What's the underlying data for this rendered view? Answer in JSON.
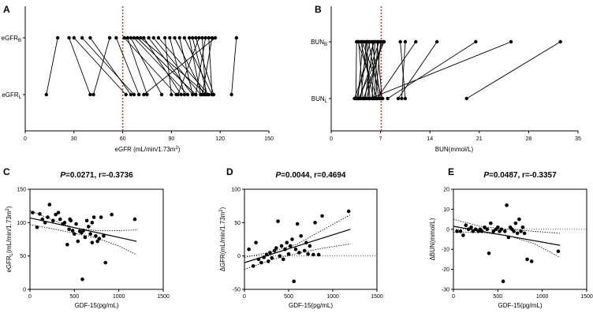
{
  "chart_data": [
    {
      "panel": "A",
      "type": "scatter",
      "xlabel": "eGFR (mL/min/1.73m²)",
      "xlim": [
        0,
        150
      ],
      "xticks": [
        "0",
        "30",
        "60",
        "90",
        "120",
        "150"
      ],
      "categories": [
        "eGFRB",
        "eGFRL"
      ],
      "reference_line": 60,
      "pairs": [
        [
          20,
          13
        ],
        [
          27,
          40
        ],
        [
          30,
          62
        ],
        [
          35,
          67
        ],
        [
          40,
          65
        ],
        [
          52,
          42
        ],
        [
          56,
          70
        ],
        [
          61,
          93
        ],
        [
          63,
          75
        ],
        [
          65,
          84
        ],
        [
          67,
          100
        ],
        [
          69,
          105
        ],
        [
          71,
          112
        ],
        [
          73,
          96
        ],
        [
          76,
          103
        ],
        [
          79,
          108
        ],
        [
          82,
          113
        ],
        [
          86,
          90
        ],
        [
          89,
          98
        ],
        [
          92,
          110
        ],
        [
          95,
          103
        ],
        [
          98,
          115
        ],
        [
          101,
          108
        ],
        [
          103,
          112
        ],
        [
          105,
          116
        ],
        [
          107,
          94
        ],
        [
          109,
          111
        ],
        [
          111,
          105
        ],
        [
          113,
          115
        ],
        [
          115,
          109
        ],
        [
          117,
          73
        ],
        [
          130,
          127
        ]
      ]
    },
    {
      "panel": "B",
      "type": "scatter",
      "xlabel": "BUN(mmol/L)",
      "xlim": [
        0,
        35
      ],
      "xticks": [
        "0",
        "7",
        "14",
        "21",
        "28",
        "35"
      ],
      "categories": [
        "BUNB",
        "BUNL"
      ],
      "reference_line": 7.1,
      "pairs": [
        [
          3.6,
          3.5
        ],
        [
          3.9,
          4.5
        ],
        [
          4.2,
          6.0
        ],
        [
          4.5,
          3.8
        ],
        [
          4.8,
          5.5
        ],
        [
          5.0,
          4.2
        ],
        [
          5.3,
          6.8
        ],
        [
          5.5,
          3.6
        ],
        [
          5.8,
          7.0
        ],
        [
          6.0,
          4.8
        ],
        [
          6.2,
          5.8
        ],
        [
          6.5,
          7.2
        ],
        [
          6.8,
          4.0
        ],
        [
          7.0,
          6.3
        ],
        [
          7.2,
          5.0
        ],
        [
          7.5,
          3.9
        ],
        [
          3.8,
          6.5
        ],
        [
          4.4,
          7.3
        ],
        [
          5.1,
          5.3
        ],
        [
          6.1,
          3.3
        ],
        [
          6.6,
          6.1
        ],
        [
          7.4,
          4.6
        ],
        [
          9.8,
          10.5
        ],
        [
          10.5,
          10.0
        ],
        [
          12.0,
          6.5
        ],
        [
          15.0,
          9.5
        ],
        [
          20.5,
          8.0
        ],
        [
          25.5,
          5.5
        ],
        [
          32.5,
          19.2
        ]
      ]
    },
    {
      "panel": "C",
      "type": "scatter",
      "title": "P=0.0271, r=-0.3736",
      "ylabel": "eGFRL(mL/min/1.73m²)",
      "xlabel": "GDF-15(pg/mL)",
      "xlim": [
        0,
        1500
      ],
      "ylim": [
        0,
        150
      ],
      "xticks": [
        "0",
        "500",
        "1000",
        "1500"
      ],
      "yticks": [
        "0",
        "50",
        "100",
        "150"
      ],
      "points": [
        [
          30,
          115
        ],
        [
          80,
          93
        ],
        [
          110,
          113
        ],
        [
          140,
          105
        ],
        [
          170,
          100
        ],
        [
          200,
          108
        ],
        [
          220,
          127
        ],
        [
          260,
          103
        ],
        [
          290,
          112
        ],
        [
          320,
          115
        ],
        [
          340,
          105
        ],
        [
          370,
          98
        ],
        [
          390,
          100
        ],
        [
          420,
          67
        ],
        [
          440,
          90
        ],
        [
          460,
          103
        ],
        [
          480,
          88
        ],
        [
          500,
          83
        ],
        [
          520,
          98
        ],
        [
          540,
          72
        ],
        [
          560,
          87
        ],
        [
          580,
          85
        ],
        [
          600,
          88
        ],
        [
          620,
          78
        ],
        [
          640,
          103
        ],
        [
          660,
          94
        ],
        [
          680,
          83
        ],
        [
          700,
          100
        ],
        [
          720,
          108
        ],
        [
          740,
          80
        ],
        [
          760,
          72
        ],
        [
          780,
          76
        ],
        [
          800,
          108
        ],
        [
          830,
          80
        ],
        [
          850,
          40
        ],
        [
          920,
          112
        ],
        [
          1180,
          105
        ],
        [
          590,
          15
        ],
        [
          450,
          105
        ],
        [
          700,
          70
        ]
      ],
      "regression": [
        [
          0,
          107
        ],
        [
          1200,
          72
        ]
      ],
      "ci_upper": [
        [
          0,
          118
        ],
        [
          250,
          104
        ],
        [
          500,
          92
        ],
        [
          750,
          88
        ],
        [
          1000,
          88
        ],
        [
          1200,
          89
        ]
      ],
      "ci_lower": [
        [
          0,
          97
        ],
        [
          250,
          91
        ],
        [
          500,
          84
        ],
        [
          750,
          77
        ],
        [
          1000,
          65
        ],
        [
          1200,
          52
        ]
      ]
    },
    {
      "panel": "D",
      "type": "scatter",
      "title": "P=0.0044, r=0.4694",
      "ylabel": "ΔGFR(mL/min/1.73m²)",
      "xlabel": "GDF-15(pg/mL)",
      "xlim": [
        0,
        1500
      ],
      "ylim": [
        -50,
        100
      ],
      "xticks": [
        "0",
        "500",
        "1000",
        "1500"
      ],
      "yticks": [
        "-50",
        "0",
        "50",
        "100"
      ],
      "points": [
        [
          50,
          10
        ],
        [
          100,
          -15
        ],
        [
          130,
          20
        ],
        [
          160,
          -5
        ],
        [
          190,
          -10
        ],
        [
          220,
          -2
        ],
        [
          250,
          2
        ],
        [
          270,
          -8
        ],
        [
          290,
          5
        ],
        [
          310,
          -3
        ],
        [
          340,
          8
        ],
        [
          360,
          12
        ],
        [
          380,
          52
        ],
        [
          400,
          0
        ],
        [
          420,
          15
        ],
        [
          440,
          -5
        ],
        [
          460,
          10
        ],
        [
          480,
          20
        ],
        [
          500,
          3
        ],
        [
          520,
          15
        ],
        [
          540,
          25
        ],
        [
          560,
          -38
        ],
        [
          580,
          10
        ],
        [
          600,
          48
        ],
        [
          620,
          5
        ],
        [
          640,
          30
        ],
        [
          680,
          8
        ],
        [
          700,
          20
        ],
        [
          720,
          3
        ],
        [
          740,
          15
        ],
        [
          780,
          2
        ],
        [
          800,
          50
        ],
        [
          840,
          2
        ],
        [
          880,
          60
        ],
        [
          1180,
          67
        ]
      ],
      "regression": [
        [
          0,
          -10
        ],
        [
          1200,
          40
        ]
      ],
      "ci_upper": [
        [
          0,
          -2
        ],
        [
          300,
          6
        ],
        [
          600,
          18
        ],
        [
          900,
          40
        ],
        [
          1200,
          62
        ]
      ],
      "ci_lower": [
        [
          0,
          -20
        ],
        [
          300,
          -6
        ],
        [
          600,
          4
        ],
        [
          900,
          12
        ],
        [
          1200,
          18
        ]
      ]
    },
    {
      "panel": "E",
      "type": "scatter",
      "title": "P=0.0487, r=-0.3357",
      "ylabel": "ΔBUN(mmol/L)",
      "xlabel": "GDF-15(pg/mL)",
      "xlim": [
        0,
        1500
      ],
      "ylim": [
        -30,
        20
      ],
      "xticks": [
        "0",
        "500",
        "1000",
        "1500"
      ],
      "yticks": [
        "-30",
        "-20",
        "-10",
        "0",
        "10",
        "20"
      ],
      "points": [
        [
          40,
          -1
        ],
        [
          80,
          -1
        ],
        [
          110,
          -3
        ],
        [
          140,
          2
        ],
        [
          170,
          0
        ],
        [
          200,
          1
        ],
        [
          220,
          -1
        ],
        [
          250,
          0
        ],
        [
          280,
          -1
        ],
        [
          300,
          0
        ],
        [
          320,
          -1
        ],
        [
          350,
          1
        ],
        [
          380,
          0
        ],
        [
          400,
          -12
        ],
        [
          420,
          3
        ],
        [
          450,
          -1
        ],
        [
          480,
          0
        ],
        [
          500,
          1
        ],
        [
          520,
          -1
        ],
        [
          540,
          0
        ],
        [
          560,
          -26
        ],
        [
          580,
          -1
        ],
        [
          600,
          12
        ],
        [
          620,
          -4
        ],
        [
          640,
          1
        ],
        [
          660,
          0
        ],
        [
          680,
          -1
        ],
        [
          700,
          3
        ],
        [
          720,
          -2
        ],
        [
          740,
          5
        ],
        [
          760,
          -1
        ],
        [
          780,
          1
        ],
        [
          800,
          -2
        ],
        [
          830,
          -15
        ],
        [
          880,
          -16
        ],
        [
          1180,
          -11
        ]
      ],
      "regression": [
        [
          0,
          1.5
        ],
        [
          1200,
          -8
        ]
      ],
      "ci_upper": [
        [
          0,
          5
        ],
        [
          300,
          1.5
        ],
        [
          600,
          0
        ],
        [
          900,
          -1
        ],
        [
          1200,
          -2
        ]
      ],
      "ci_lower": [
        [
          0,
          -1.5
        ],
        [
          300,
          -1.5
        ],
        [
          600,
          -3
        ],
        [
          900,
          -7
        ],
        [
          1200,
          -14
        ]
      ]
    }
  ]
}
